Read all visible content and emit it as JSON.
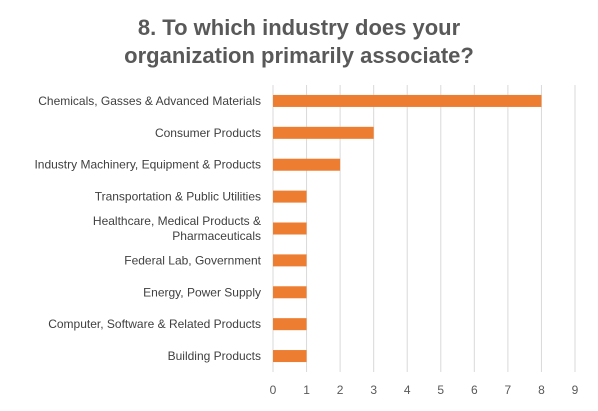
{
  "chart_data": {
    "type": "bar",
    "orientation": "horizontal",
    "title_lines": [
      "8. To which industry does your",
      "organization primarily associate?"
    ],
    "categories": [
      "Chemicals, Gasses & Advanced Materials",
      "Consumer Products",
      "Industry Machinery, Equipment & Products",
      "Transportation & Public Utilities",
      "Healthcare, Medical Products & Pharmaceuticals",
      "Federal Lab, Government",
      "Energy, Power Supply",
      "Computer, Software & Related Products",
      "Building Products"
    ],
    "category_label_lines": [
      [
        "Chemicals, Gasses & Advanced Materials"
      ],
      [
        "Consumer Products"
      ],
      [
        "Industry Machinery, Equipment & Products"
      ],
      [
        "Transportation & Public Utilities"
      ],
      [
        "Healthcare, Medical Products &",
        "Pharmaceuticals"
      ],
      [
        "Federal Lab, Government"
      ],
      [
        "Energy, Power Supply"
      ],
      [
        "Computer, Software & Related Products"
      ],
      [
        "Building Products"
      ]
    ],
    "values": [
      8,
      3,
      2,
      1,
      1,
      1,
      1,
      1,
      1
    ],
    "xlim": [
      0,
      9
    ],
    "xticks": [
      0,
      1,
      2,
      3,
      4,
      5,
      6,
      7,
      8,
      9
    ],
    "grid": "vertical",
    "bar_color": "#ED7D31",
    "grid_color": "#D9D9D9",
    "legend": "none"
  }
}
